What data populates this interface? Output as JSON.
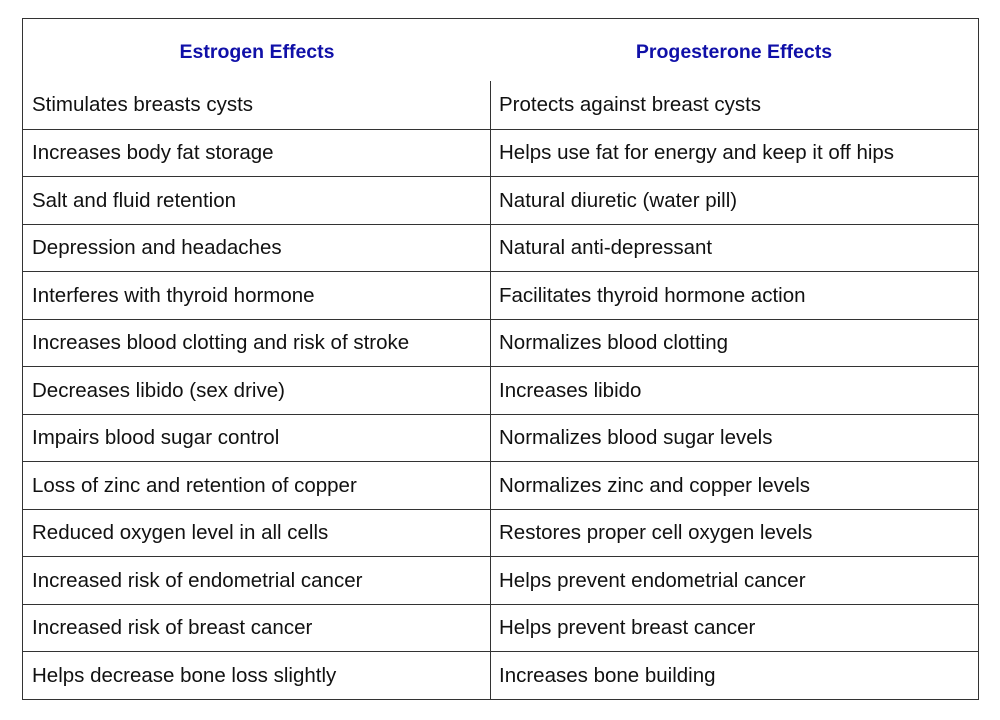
{
  "table": {
    "headers": {
      "estrogen": "Estrogen Effects",
      "progesterone": "Progesterone Effects"
    },
    "header_color": "#1010a8",
    "rows": [
      {
        "estrogen": "Stimulates breasts cysts",
        "progesterone": "Protects against breast cysts"
      },
      {
        "estrogen": "Increases body fat storage",
        "progesterone": "Helps use fat for energy and keep it off hips"
      },
      {
        "estrogen": "Salt and fluid retention",
        "progesterone": "Natural diuretic (water pill)"
      },
      {
        "estrogen": "Depression and headaches",
        "progesterone": "Natural anti-depressant"
      },
      {
        "estrogen": "Interferes with thyroid hormone",
        "progesterone": "Facilitates thyroid hormone action"
      },
      {
        "estrogen": "Increases blood clotting and risk of stroke",
        "progesterone": "Normalizes blood clotting"
      },
      {
        "estrogen": "Decreases libido (sex drive)",
        "progesterone": "Increases libido"
      },
      {
        "estrogen": "Impairs blood sugar control",
        "progesterone": "Normalizes blood sugar levels"
      },
      {
        "estrogen": "Loss of zinc and retention of copper",
        "progesterone": "Normalizes zinc and copper levels"
      },
      {
        "estrogen": "Reduced oxygen level in all cells",
        "progesterone": "Restores proper cell oxygen levels"
      },
      {
        "estrogen": "Increased risk of endometrial cancer",
        "progesterone": "Helps prevent endometrial cancer"
      },
      {
        "estrogen": "Increased risk of breast cancer",
        "progesterone": "Helps prevent breast cancer"
      },
      {
        "estrogen": "Helps decrease bone loss slightly",
        "progesterone": "Increases bone building"
      }
    ]
  }
}
